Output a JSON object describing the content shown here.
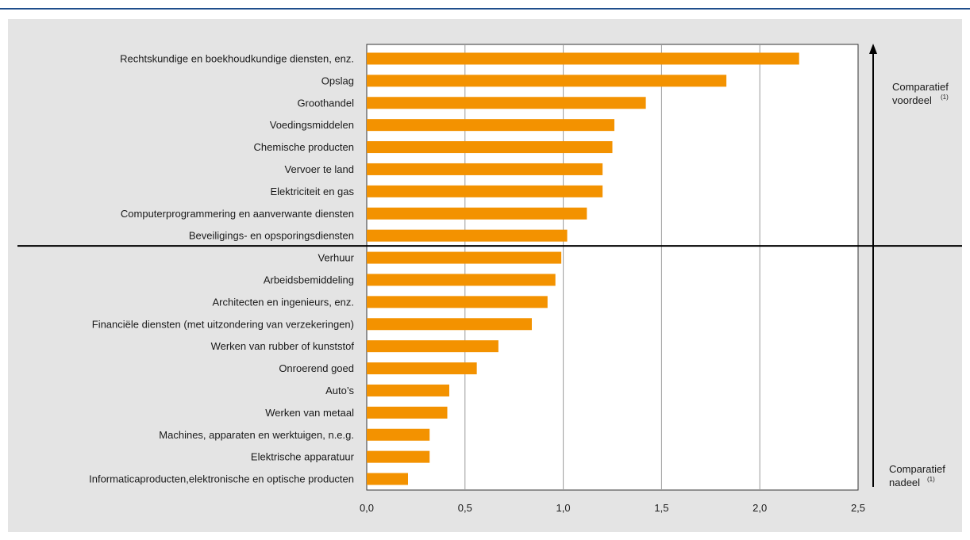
{
  "chart_data": {
    "type": "bar",
    "orientation": "horizontal",
    "categories": [
      "Rechtskundige en boekhoudkundige diensten, enz.",
      "Opslag",
      "Groothandel",
      "Voedingsmiddelen",
      "Chemische producten",
      "Vervoer te land",
      "Elektriciteit en gas",
      "Computerprogrammering en aanverwante diensten",
      "Beveiligings- en opsporingsdiensten",
      "Verhuur",
      "Arbeidsbemiddeling",
      "Architecten en ingenieurs, enz.",
      "Financiële diensten (met uitzondering van verzekeringen)",
      "Werken van rubber of kunststof",
      "Onroerend goed",
      "Auto’s",
      "Werken van metaal",
      "Machines, apparaten en werktuigen, n.e.g.",
      "Elektrische apparatuur",
      "Informaticaproducten,elektronische en optische producten"
    ],
    "values": [
      2.2,
      1.83,
      1.42,
      1.26,
      1.25,
      1.2,
      1.2,
      1.12,
      1.02,
      0.99,
      0.96,
      0.92,
      0.84,
      0.67,
      0.56,
      0.42,
      0.41,
      0.32,
      0.32,
      0.21
    ],
    "x_ticks": [
      "0,0",
      "0,5",
      "1,0",
      "1,5",
      "2,0",
      "2,5"
    ],
    "xlim": [
      0,
      2.5
    ],
    "reference_line_between": [
      "Beveiligings- en opsporingsdiensten",
      "Verhuur"
    ],
    "grid": "vertical",
    "bar_color": "#f39200",
    "side_labels": {
      "top": [
        "Comparatief",
        "voordeel"
      ],
      "bottom": [
        "Comparatief",
        "nadeel"
      ],
      "note": "(1)"
    }
  }
}
